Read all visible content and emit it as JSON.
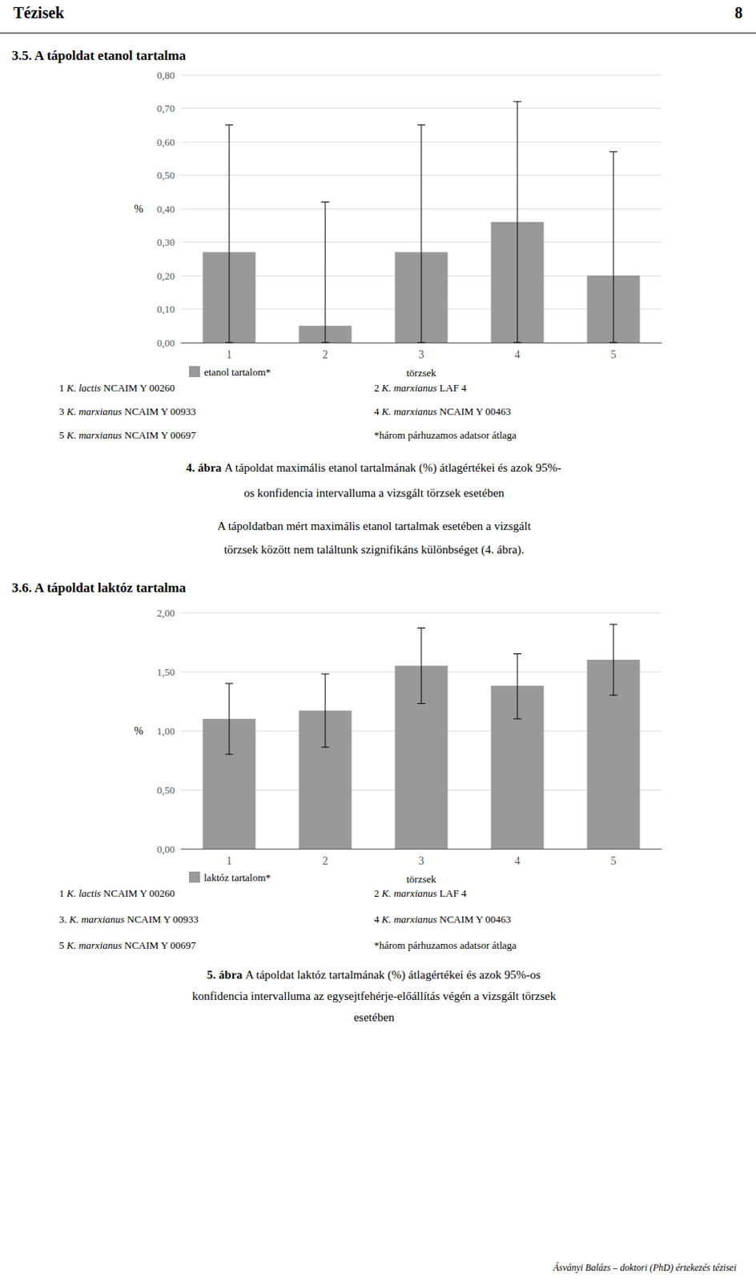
{
  "page_header": "Tézisek",
  "page_number": "8",
  "footer": "Ásványi Balázs – doktori (PhD) értekezés tézisei",
  "chart_data": [
    {
      "type": "bar",
      "title": "3.5. A tápoldat etanol tartalma",
      "xlabel": "törzsek",
      "ylabel": "%",
      "categories": [
        1,
        2,
        3,
        4,
        5
      ],
      "series": [
        {
          "name": "etanol tartalom*",
          "color": "#999999",
          "values": [
            0.27,
            0.05,
            0.27,
            0.36,
            0.2
          ],
          "ci_lower": [
            0.0,
            0.0,
            0.0,
            0.0,
            0.0
          ],
          "ci_upper": [
            0.65,
            0.42,
            0.65,
            0.72,
            0.57
          ]
        }
      ],
      "ylim": [
        0.0,
        0.8
      ],
      "yticks": [
        {
          "value": 0.0,
          "label": "0,00"
        },
        {
          "value": 0.1,
          "label": "0,10"
        },
        {
          "value": 0.2,
          "label": "0,20"
        },
        {
          "value": 0.3,
          "label": "0,30"
        },
        {
          "value": 0.4,
          "label": "0,40"
        },
        {
          "value": 0.5,
          "label": "0,50"
        },
        {
          "value": 0.6,
          "label": "0,60"
        },
        {
          "value": 0.7,
          "label": "0,70"
        },
        {
          "value": 0.8,
          "label": "0,80"
        }
      ],
      "grid": true,
      "legend": "bottom",
      "strains": [
        {
          "number": "1",
          "species": "K. lactis",
          "strain": "NCAIM Y 00260"
        },
        {
          "number": "2",
          "species": "K. marxianus",
          "strain": "LAF 4"
        },
        {
          "number": "3",
          "species": "K. marxianus",
          "strain": "NCAIM Y 00933"
        },
        {
          "number": "4",
          "species": "K. marxianus",
          "strain": "NCAIM Y 00463"
        },
        {
          "number": "5",
          "species": "K. marxianus",
          "strain": "NCAIM Y 00697"
        }
      ],
      "footnote": "*három párhuzamos adatsor átlaga",
      "caption": {
        "label": "4. ábra",
        "lines": [
          "A tápoldat maximális etanol tartalmának (%) átlagértékei és azok 95%-",
          "os konfidencia intervalluma a vizsgált törzsek esetében"
        ]
      },
      "paragraph": [
        "A tápoldatban mért maximális etanol tartalmak esetében a vizsgált",
        "törzsek között nem találtunk szignifikáns különbséget (4. ábra)."
      ]
    },
    {
      "type": "bar",
      "title": "3.6. A tápoldat laktóz tartalma",
      "xlabel": "törzsek",
      "ylabel": "%",
      "categories": [
        1,
        2,
        3,
        4,
        5
      ],
      "series": [
        {
          "name": "laktóz tartalom*",
          "color": "#999999",
          "values": [
            1.1,
            1.17,
            1.55,
            1.38,
            1.6
          ],
          "ci_lower": [
            0.8,
            0.86,
            1.23,
            1.1,
            1.3
          ],
          "ci_upper": [
            1.4,
            1.48,
            1.87,
            1.65,
            1.9
          ]
        }
      ],
      "ylim": [
        0.0,
        2.0
      ],
      "yticks": [
        {
          "value": 0.0,
          "label": "0,00"
        },
        {
          "value": 0.5,
          "label": "0,50"
        },
        {
          "value": 1.0,
          "label": "1,00"
        },
        {
          "value": 1.5,
          "label": "1,50"
        },
        {
          "value": 2.0,
          "label": "2,00"
        }
      ],
      "grid": true,
      "legend": "bottom",
      "strains": [
        {
          "number": "1",
          "species": "K. lactis",
          "strain": "NCAIM Y 00260"
        },
        {
          "number": "2",
          "species": "K. marxianus",
          "strain": "LAF 4"
        },
        {
          "number": "3.",
          "species": "K. marxianus",
          "strain": "NCAIM Y 00933"
        },
        {
          "number": "4",
          "species": "K. marxianus",
          "strain": "NCAIM Y 00463"
        },
        {
          "number": "5",
          "species": "K. marxianus",
          "strain": "NCAIM Y 00697"
        }
      ],
      "footnote": "*három párhuzamos adatsor átlaga",
      "caption": {
        "label": "5. ábra",
        "lines": [
          "A tápoldat laktóz tartalmának (%) átlagértékei és azok 95%-os",
          "konfidencia intervalluma az egysejtfehérje-előállítás végén a vizsgált törzsek",
          "esetében"
        ]
      }
    }
  ]
}
